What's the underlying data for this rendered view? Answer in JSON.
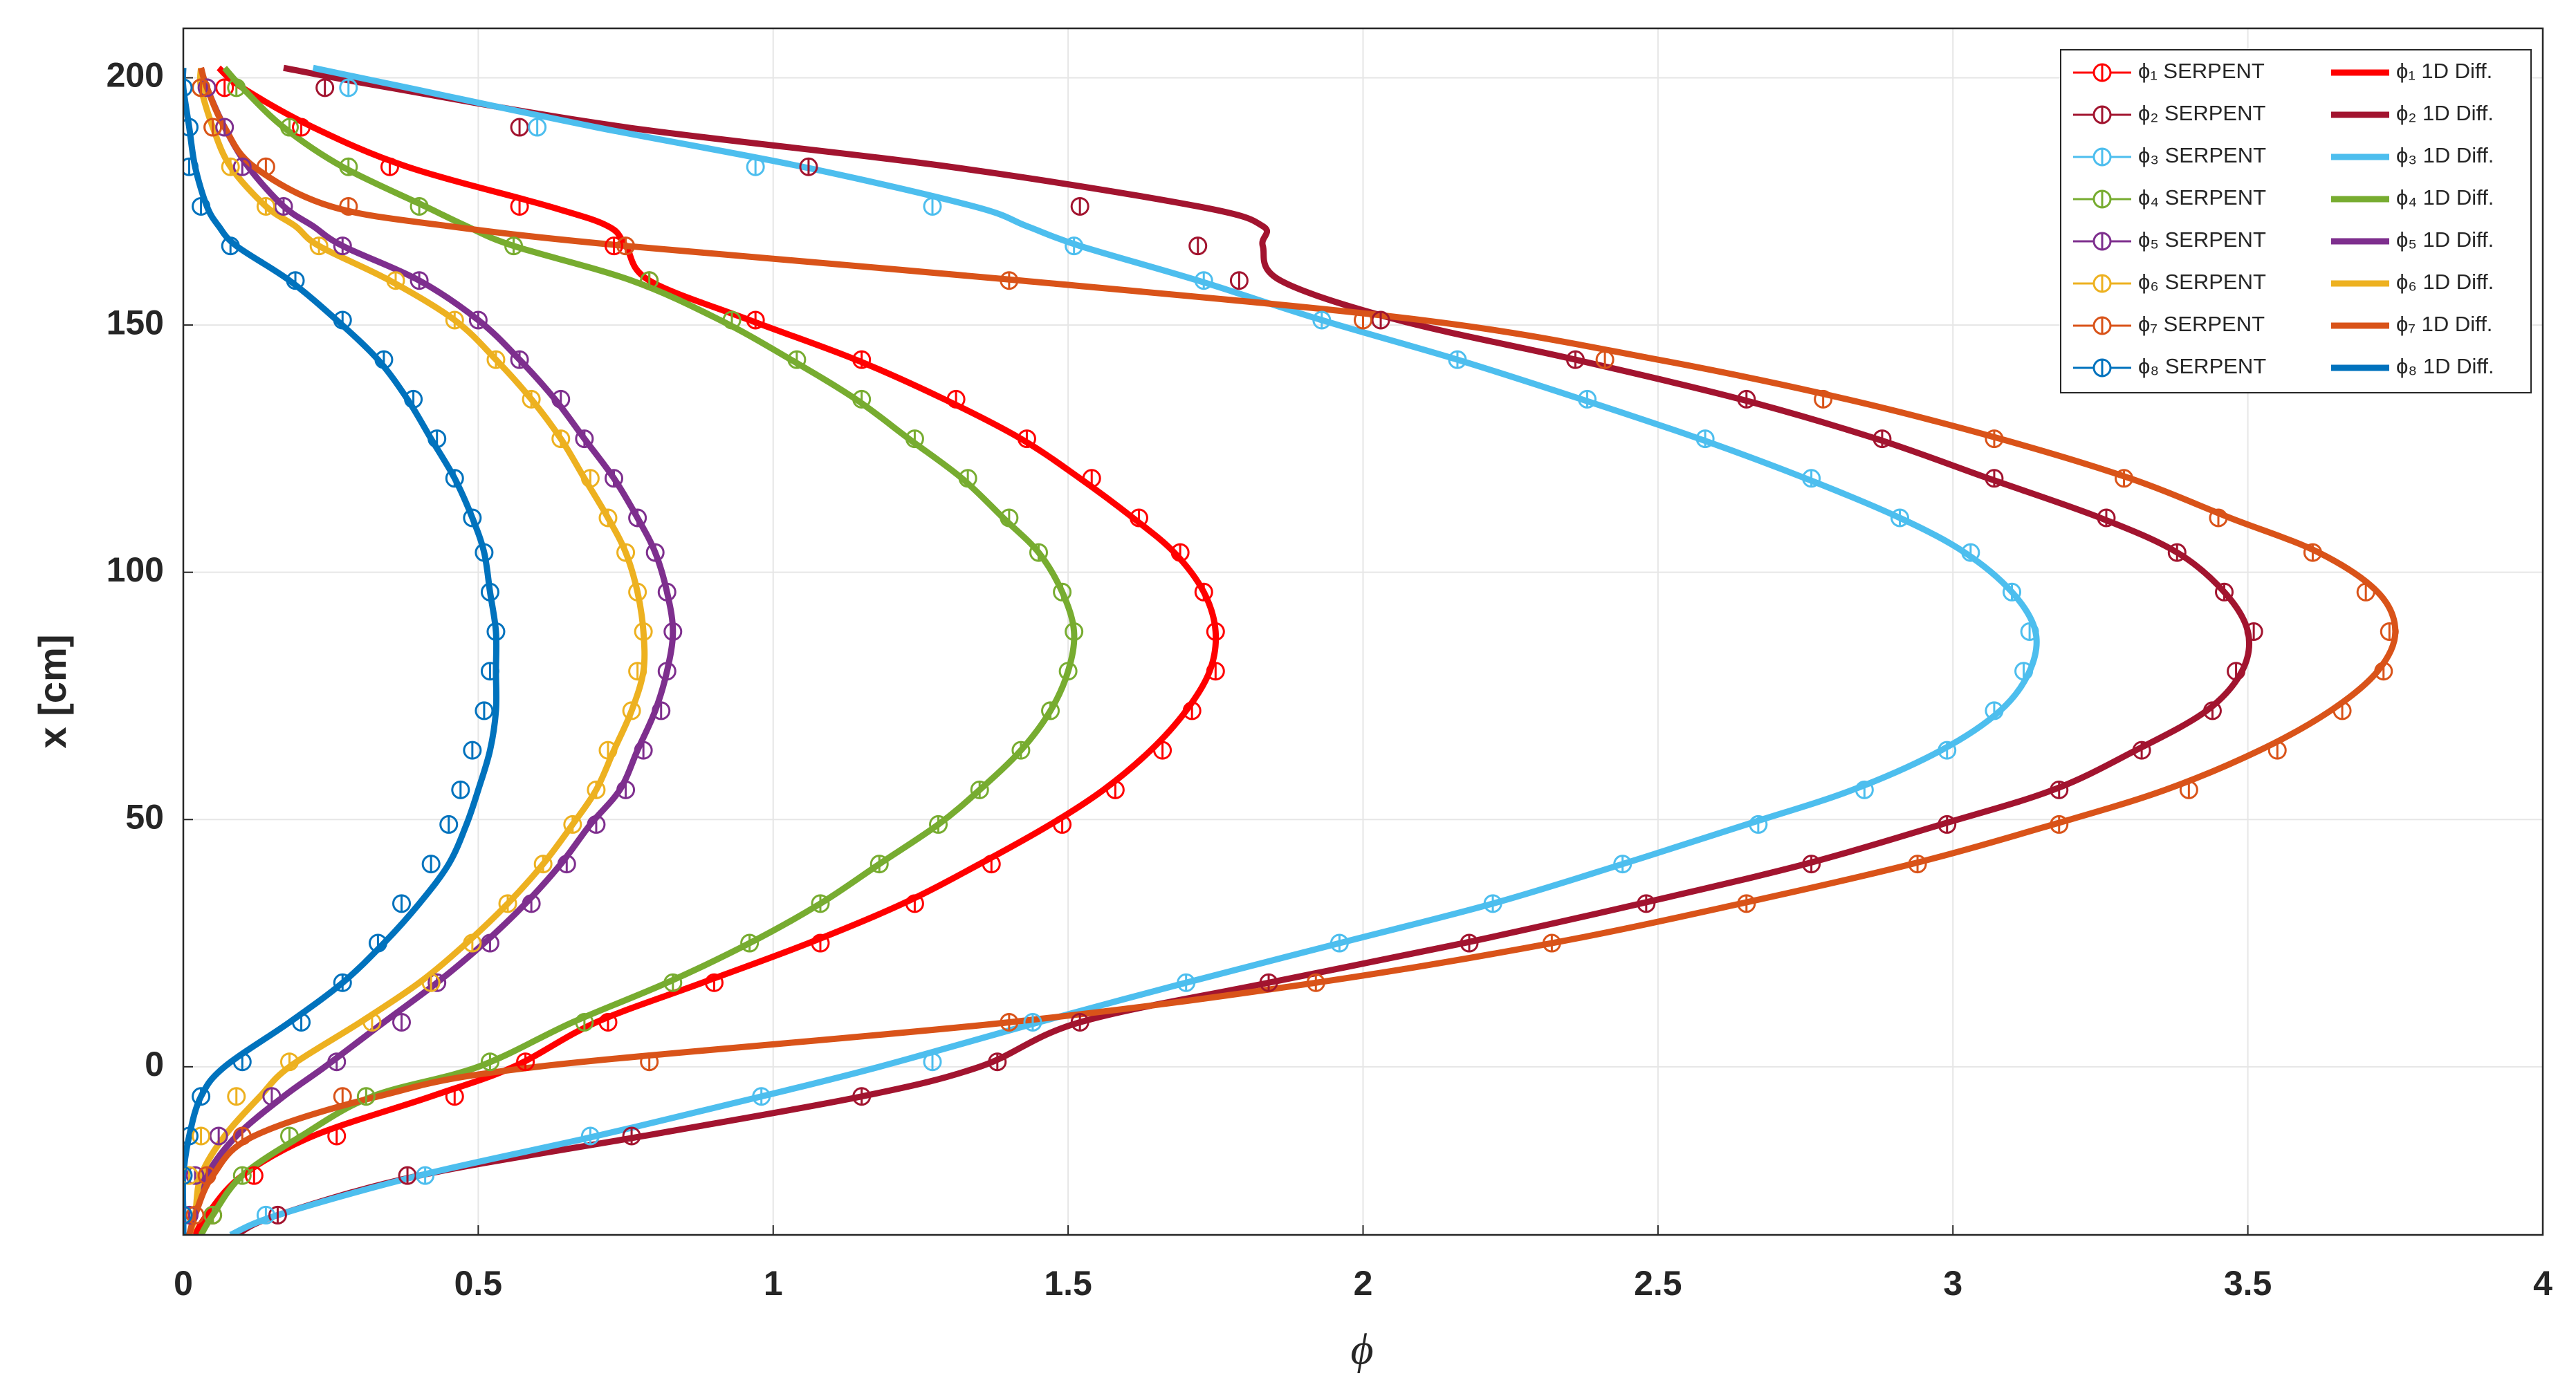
{
  "chart_data": {
    "type": "line",
    "xlabel": "ϕ",
    "ylabel": "x [cm]",
    "xlim": [
      0,
      4
    ],
    "ylim": [
      -34,
      210
    ],
    "xticks": [
      0,
      0.5,
      1,
      1.5,
      2,
      2.5,
      3,
      3.5,
      4
    ],
    "yticks": [
      0,
      50,
      100,
      150,
      200
    ],
    "grid": true,
    "legend": "upper right",
    "points_y": [
      -30,
      -22,
      -14,
      -6,
      1,
      9,
      17,
      25,
      33,
      41,
      49,
      56,
      64,
      72,
      80,
      88,
      96,
      104,
      111,
      119,
      127,
      135,
      143,
      151,
      159,
      166,
      174,
      182,
      190,
      198
    ],
    "lines_y": [
      -34,
      -30,
      -22,
      -14,
      -6,
      0,
      9,
      17,
      25,
      33,
      41,
      49,
      56,
      64,
      72,
      80,
      88,
      96,
      104,
      111,
      119,
      127,
      135,
      143,
      151,
      159,
      166,
      170,
      174,
      182,
      190,
      198,
      202
    ],
    "series": [
      {
        "name": "ϕ₁ SERPENT",
        "kind": "points",
        "color": "#ff0000",
        "values": [
          0.05,
          0.12,
          0.26,
          0.46,
          0.58,
          0.72,
          0.9,
          1.08,
          1.24,
          1.37,
          1.49,
          1.58,
          1.66,
          1.71,
          1.75,
          1.75,
          1.73,
          1.69,
          1.62,
          1.54,
          1.43,
          1.31,
          1.15,
          0.97,
          0.79,
          0.73,
          0.57,
          0.35,
          0.2,
          0.07
        ]
      },
      {
        "name": "ϕ₂ SERPENT",
        "kind": "points",
        "color": "#a2142f",
        "values": [
          0.16,
          0.38,
          0.76,
          1.15,
          1.38,
          1.52,
          1.84,
          2.18,
          2.48,
          2.76,
          2.99,
          3.18,
          3.32,
          3.44,
          3.48,
          3.51,
          3.46,
          3.38,
          3.26,
          3.07,
          2.88,
          2.65,
          2.36,
          2.03,
          1.79,
          1.72,
          1.52,
          1.06,
          0.57,
          0.24
        ]
      },
      {
        "name": "ϕ₃ SERPENT",
        "kind": "points",
        "color": "#4dbeee",
        "values": [
          0.14,
          0.41,
          0.69,
          0.98,
          1.27,
          1.44,
          1.7,
          1.96,
          2.22,
          2.44,
          2.67,
          2.85,
          2.99,
          3.07,
          3.12,
          3.13,
          3.1,
          3.03,
          2.91,
          2.76,
          2.58,
          2.38,
          2.16,
          1.93,
          1.73,
          1.51,
          1.27,
          0.97,
          0.6,
          0.28
        ]
      },
      {
        "name": "ϕ₄ SERPENT",
        "kind": "points",
        "color": "#77ac30",
        "values": [
          0.05,
          0.1,
          0.18,
          0.31,
          0.52,
          0.68,
          0.83,
          0.96,
          1.08,
          1.18,
          1.28,
          1.35,
          1.42,
          1.47,
          1.5,
          1.51,
          1.49,
          1.45,
          1.4,
          1.33,
          1.24,
          1.15,
          1.04,
          0.93,
          0.79,
          0.56,
          0.4,
          0.28,
          0.18,
          0.09
        ]
      },
      {
        "name": "ϕ₅ SERPENT",
        "kind": "points",
        "color": "#7e2f8e",
        "values": [
          0.01,
          0.02,
          0.06,
          0.15,
          0.26,
          0.37,
          0.43,
          0.52,
          0.59,
          0.65,
          0.7,
          0.75,
          0.78,
          0.81,
          0.82,
          0.83,
          0.82,
          0.8,
          0.77,
          0.73,
          0.68,
          0.64,
          0.57,
          0.5,
          0.4,
          0.27,
          0.17,
          0.1,
          0.07,
          0.04
        ]
      },
      {
        "name": "ϕ₆ SERPENT",
        "kind": "points",
        "color": "#edb120",
        "values": [
          0.0,
          0.01,
          0.03,
          0.09,
          0.18,
          0.32,
          0.42,
          0.49,
          0.55,
          0.61,
          0.66,
          0.7,
          0.72,
          0.76,
          0.77,
          0.78,
          0.77,
          0.75,
          0.72,
          0.69,
          0.64,
          0.59,
          0.53,
          0.46,
          0.36,
          0.23,
          0.14,
          0.08,
          0.05,
          0.03
        ]
      },
      {
        "name": "ϕ₇ SERPENT",
        "kind": "points",
        "color": "#d95319",
        "values": [
          0.02,
          0.04,
          0.1,
          0.27,
          0.79,
          1.4,
          1.92,
          2.32,
          2.65,
          2.94,
          3.18,
          3.4,
          3.55,
          3.66,
          3.73,
          3.74,
          3.7,
          3.61,
          3.45,
          3.29,
          3.07,
          2.78,
          2.41,
          2.0,
          1.4,
          0.75,
          0.28,
          0.14,
          0.05,
          0.03
        ]
      },
      {
        "name": "ϕ₈ SERPENT",
        "kind": "points",
        "color": "#0072bd",
        "values": [
          0.0,
          0.0,
          0.01,
          0.03,
          0.1,
          0.2,
          0.27,
          0.33,
          0.37,
          0.42,
          0.45,
          0.47,
          0.49,
          0.51,
          0.52,
          0.53,
          0.52,
          0.51,
          0.49,
          0.46,
          0.43,
          0.39,
          0.34,
          0.27,
          0.19,
          0.08,
          0.03,
          0.01,
          0.01,
          0.0
        ]
      },
      {
        "name": "ϕ₁ 1D Diff.",
        "kind": "line",
        "color": "#ff0000",
        "values": [
          0.02,
          0.04,
          0.1,
          0.22,
          0.42,
          0.56,
          0.7,
          0.88,
          1.06,
          1.22,
          1.35,
          1.47,
          1.56,
          1.64,
          1.7,
          1.74,
          1.75,
          1.73,
          1.68,
          1.61,
          1.52,
          1.42,
          1.29,
          1.14,
          0.96,
          0.79,
          0.75,
          0.72,
          0.62,
          0.38,
          0.22,
          0.1,
          0.06
        ]
      },
      {
        "name": "ϕ₂ 1D Diff.",
        "kind": "line",
        "color": "#a2142f",
        "values": [
          0.09,
          0.16,
          0.4,
          0.78,
          1.15,
          1.35,
          1.52,
          1.84,
          2.17,
          2.47,
          2.75,
          2.98,
          3.17,
          3.31,
          3.43,
          3.49,
          3.5,
          3.46,
          3.38,
          3.25,
          3.06,
          2.87,
          2.64,
          2.36,
          2.06,
          1.86,
          1.83,
          1.83,
          1.72,
          1.3,
          0.75,
          0.35,
          0.17
        ]
      },
      {
        "name": "ϕ₃ 1D Diff.",
        "kind": "line",
        "color": "#4dbeee",
        "values": [
          0.08,
          0.16,
          0.4,
          0.7,
          0.98,
          1.18,
          1.45,
          1.7,
          1.96,
          2.22,
          2.44,
          2.65,
          2.83,
          2.98,
          3.08,
          3.13,
          3.14,
          3.1,
          3.02,
          2.91,
          2.75,
          2.57,
          2.37,
          2.16,
          1.93,
          1.72,
          1.52,
          1.43,
          1.34,
          1.05,
          0.7,
          0.38,
          0.22
        ]
      },
      {
        "name": "ϕ₄ 1D Diff.",
        "kind": "line",
        "color": "#77ac30",
        "values": [
          0.03,
          0.05,
          0.1,
          0.2,
          0.32,
          0.5,
          0.66,
          0.82,
          0.96,
          1.08,
          1.18,
          1.28,
          1.35,
          1.42,
          1.47,
          1.5,
          1.51,
          1.49,
          1.45,
          1.39,
          1.32,
          1.23,
          1.14,
          1.03,
          0.91,
          0.76,
          0.56,
          0.48,
          0.41,
          0.27,
          0.17,
          0.1,
          0.07
        ]
      },
      {
        "name": "ϕ₅ 1D Diff.",
        "kind": "line",
        "color": "#7e2f8e",
        "values": [
          0.01,
          0.02,
          0.04,
          0.09,
          0.17,
          0.24,
          0.34,
          0.43,
          0.51,
          0.58,
          0.64,
          0.69,
          0.74,
          0.77,
          0.8,
          0.82,
          0.83,
          0.82,
          0.8,
          0.77,
          0.73,
          0.68,
          0.63,
          0.57,
          0.5,
          0.4,
          0.27,
          0.22,
          0.17,
          0.11,
          0.07,
          0.04,
          0.03
        ]
      },
      {
        "name": "ϕ₆ 1D Diff.",
        "kind": "line",
        "color": "#edb120",
        "values": [
          0.01,
          0.02,
          0.03,
          0.07,
          0.13,
          0.18,
          0.3,
          0.4,
          0.48,
          0.55,
          0.61,
          0.66,
          0.7,
          0.73,
          0.76,
          0.78,
          0.78,
          0.77,
          0.75,
          0.72,
          0.68,
          0.64,
          0.59,
          0.53,
          0.46,
          0.35,
          0.23,
          0.19,
          0.14,
          0.08,
          0.05,
          0.03,
          0.03
        ]
      },
      {
        "name": "ϕ₇ 1D Diff.",
        "kind": "line",
        "color": "#d95319",
        "values": [
          0.01,
          0.02,
          0.05,
          0.12,
          0.33,
          0.6,
          1.4,
          1.92,
          2.32,
          2.64,
          2.93,
          3.17,
          3.36,
          3.52,
          3.64,
          3.72,
          3.75,
          3.72,
          3.62,
          3.47,
          3.3,
          3.08,
          2.82,
          2.5,
          2.1,
          1.42,
          0.75,
          0.45,
          0.25,
          0.12,
          0.07,
          0.04,
          0.03
        ]
      },
      {
        "name": "ϕ₈ 1D Diff.",
        "kind": "line",
        "color": "#0072bd",
        "values": [
          0.0,
          0.0,
          0.0,
          0.01,
          0.03,
          0.07,
          0.18,
          0.27,
          0.34,
          0.4,
          0.45,
          0.48,
          0.5,
          0.52,
          0.53,
          0.53,
          0.53,
          0.52,
          0.51,
          0.49,
          0.46,
          0.42,
          0.38,
          0.33,
          0.26,
          0.18,
          0.09,
          0.06,
          0.04,
          0.02,
          0.01,
          0.0,
          0.0
        ]
      }
    ]
  }
}
